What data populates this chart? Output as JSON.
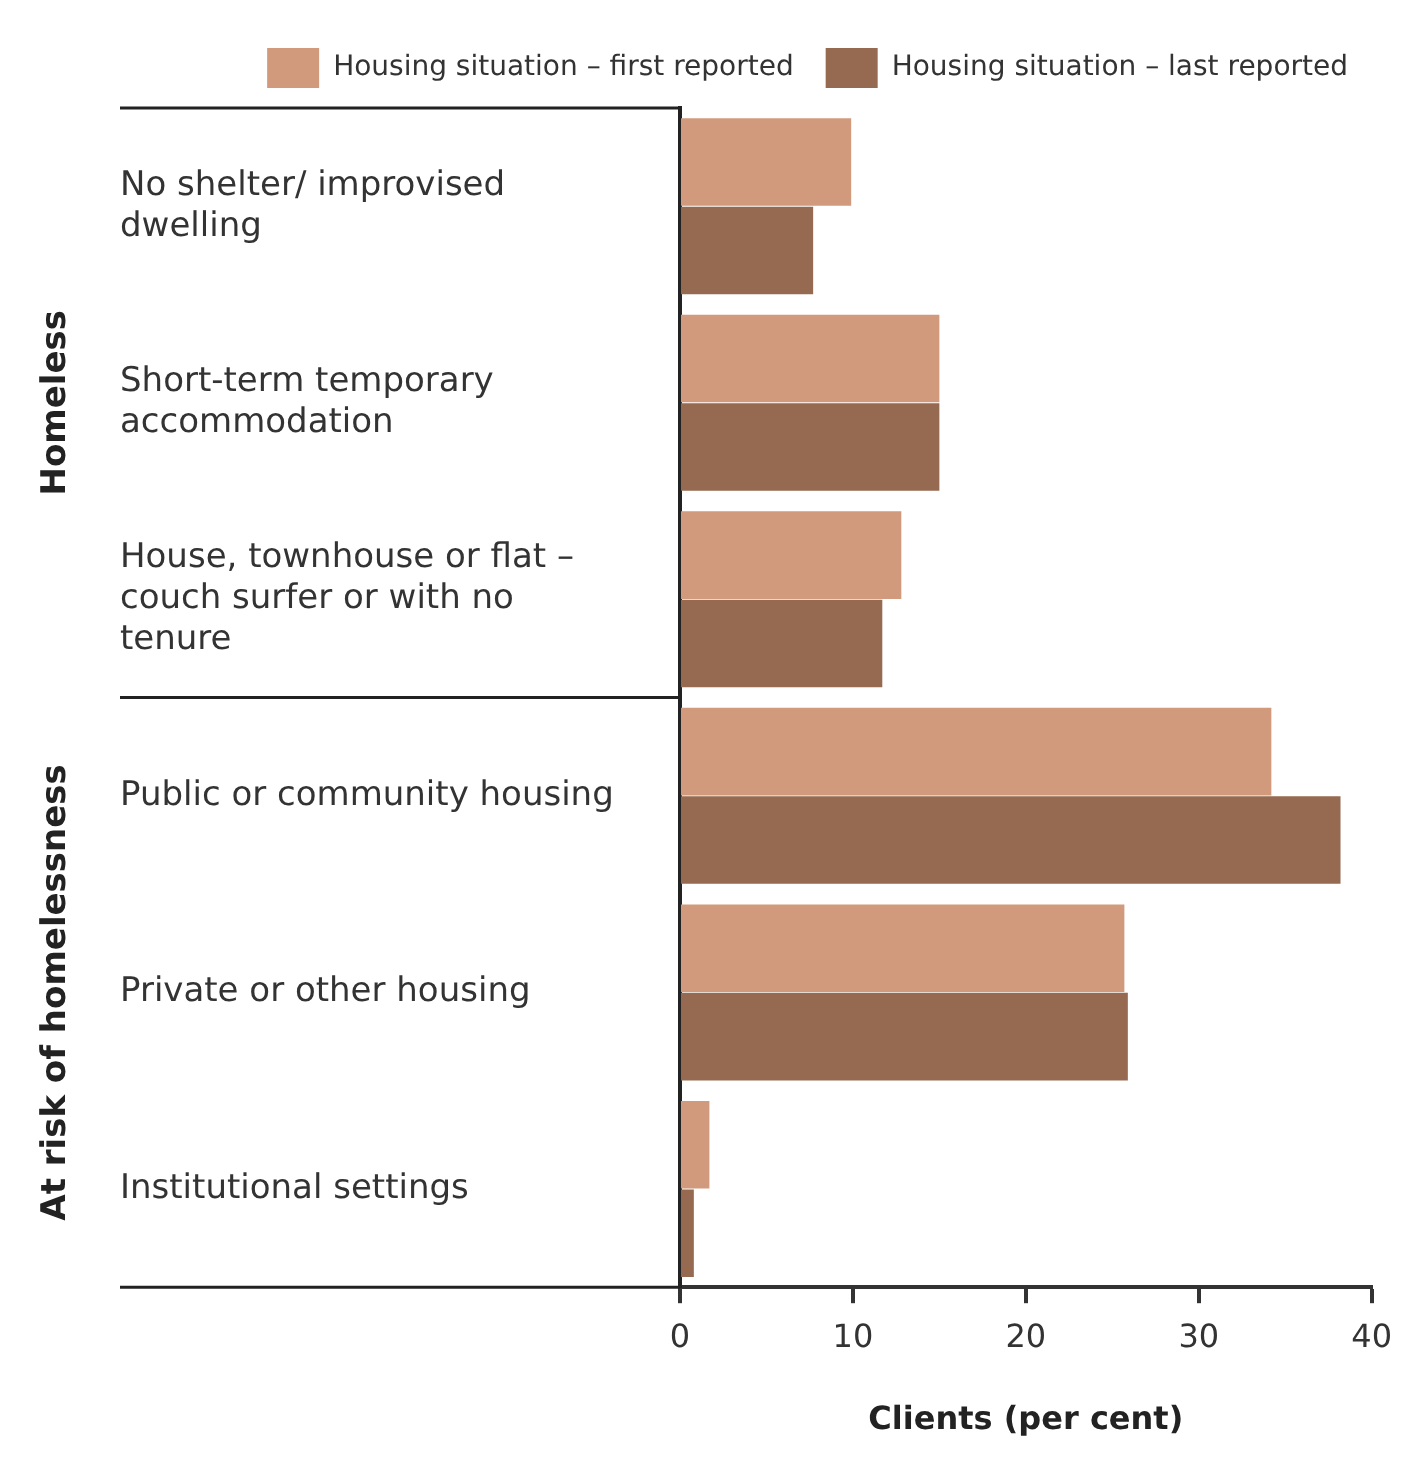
{
  "chart_data": {
    "type": "bar",
    "orientation": "horizontal",
    "xlabel": "Clients (per cent)",
    "categories": [
      "No shelter/ improvised dwelling",
      "Short-term temporary accommodation",
      "House, townhouse or flat – couch surfer or with no tenure",
      "Public or community housing",
      "Private or other housing",
      "Institutional settings"
    ],
    "series": [
      {
        "name": "Housing situation – first reported",
        "color": "#d19a7c",
        "values": [
          9.9,
          15.0,
          12.8,
          34.2,
          25.7,
          1.7
        ]
      },
      {
        "name": "Housing situation – last reported",
        "color": "#956a51",
        "values": [
          7.7,
          15.0,
          11.7,
          38.2,
          25.9,
          0.8
        ]
      }
    ],
    "xlim": [
      0,
      40
    ],
    "xticks": [
      0,
      10,
      20,
      30,
      40
    ],
    "grid": false,
    "legend": "top",
    "annotations": [
      "Homeless",
      "At risk of homelessness"
    ]
  }
}
